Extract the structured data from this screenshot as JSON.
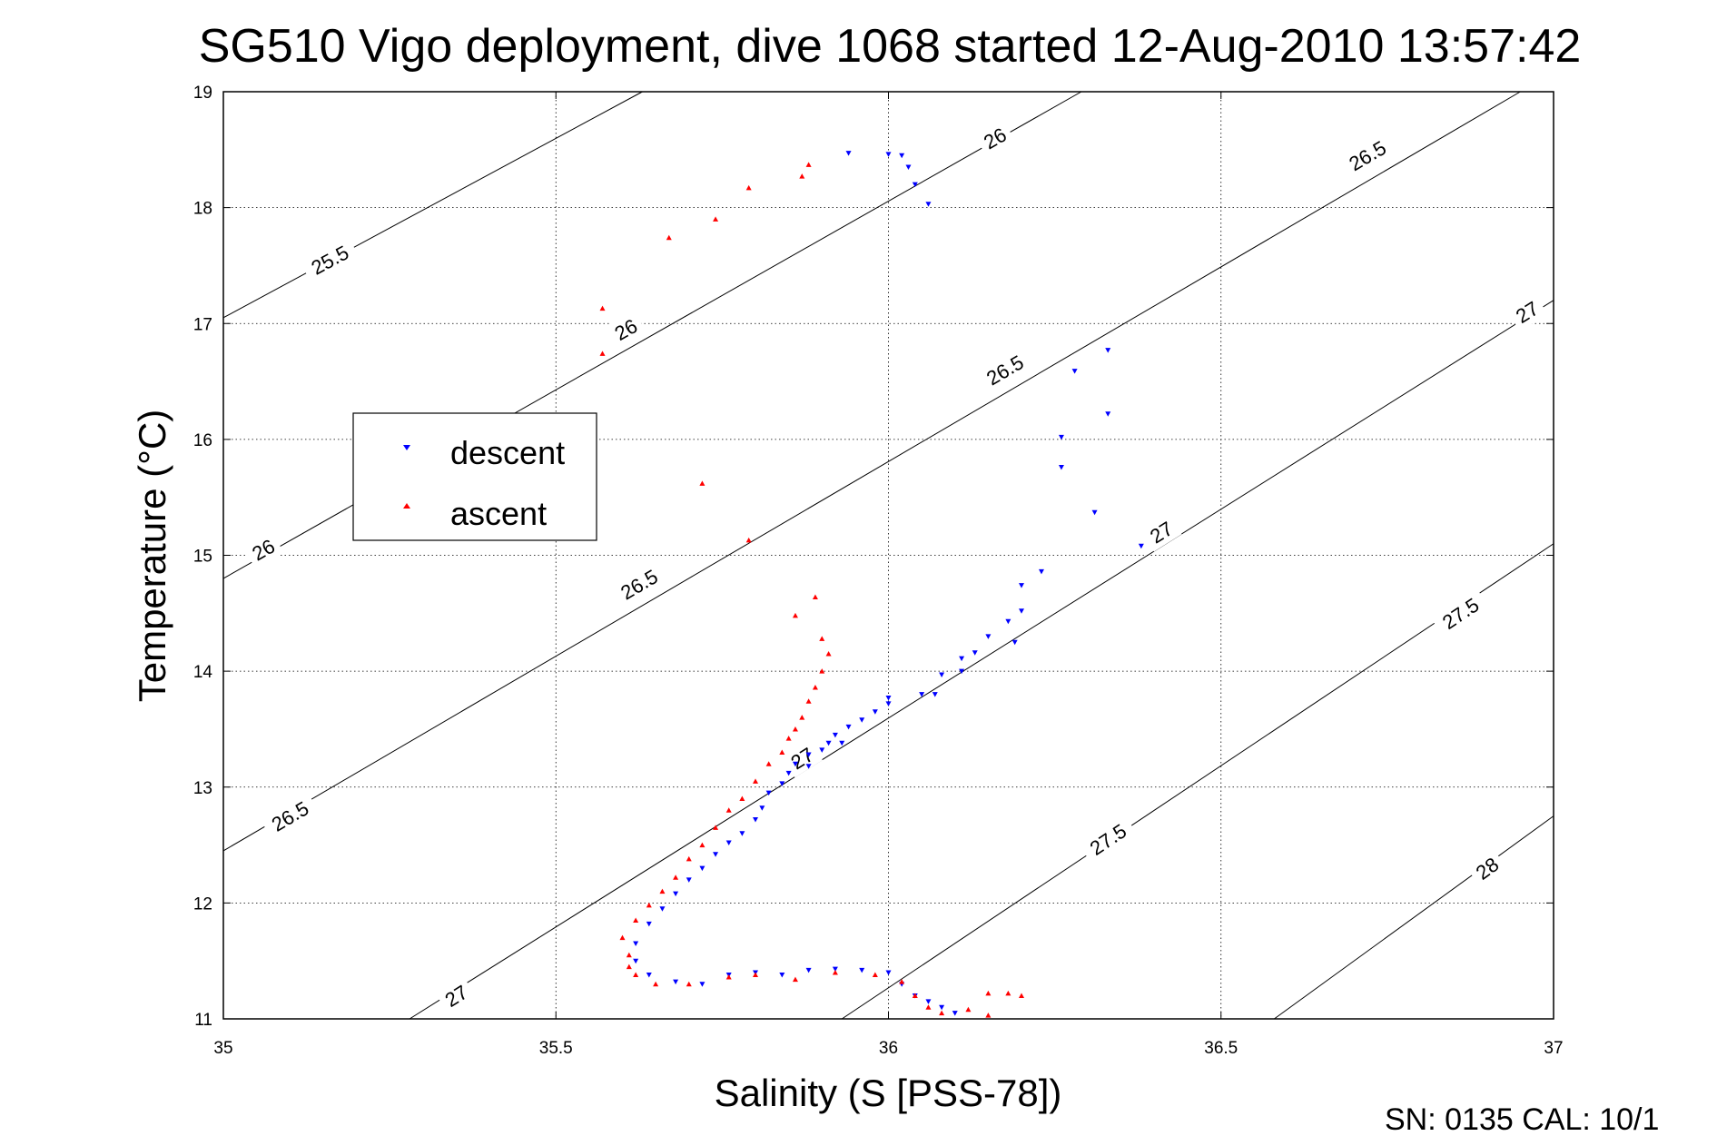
{
  "chart_data": {
    "type": "scatter",
    "title": "SG510 Vigo deployment, dive 1068 started 12-Aug-2010 13:57:42",
    "xlabel": "Salinity (S [PSS-78])",
    "ylabel": "Temperature (°C)",
    "xlim": [
      35,
      37
    ],
    "ylim": [
      11,
      19
    ],
    "x_ticks": [
      "35",
      "35.5",
      "36",
      "36.5",
      "37"
    ],
    "y_ticks": [
      "11",
      "12",
      "13",
      "14",
      "15",
      "16",
      "17",
      "18",
      "19"
    ],
    "grid": "dotted",
    "legend_position": "left",
    "legend": [
      {
        "label": "descent",
        "color": "#0000ff",
        "marker": "down-triangle"
      },
      {
        "label": "ascent",
        "color": "#ff0000",
        "marker": "up-triangle"
      }
    ],
    "footer": "SN: 0135  CAL: 10/1",
    "contours": [
      {
        "value": 25.5,
        "label": "25.5",
        "points": [
          [
            35.0,
            17.05
          ],
          [
            35.63,
            19.0
          ]
        ],
        "labels_at": [
          [
            35.16,
            17.55
          ]
        ]
      },
      {
        "value": 26.0,
        "label": "26",
        "points": [
          [
            35.0,
            14.8
          ],
          [
            36.29,
            19.0
          ]
        ],
        "labels_at": [
          [
            35.06,
            15.05
          ],
          [
            35.605,
            16.95
          ],
          [
            36.16,
            18.6
          ]
        ]
      },
      {
        "value": 26.5,
        "label": "26.5",
        "points": [
          [
            35.0,
            12.45
          ],
          [
            36.95,
            19.0
          ]
        ],
        "labels_at": [
          [
            35.1,
            12.75
          ],
          [
            35.625,
            14.75
          ],
          [
            36.175,
            16.6
          ],
          [
            36.72,
            18.45
          ]
        ]
      },
      {
        "value": 27.0,
        "label": "27",
        "points": [
          [
            35.28,
            11.0
          ],
          [
            37.0,
            17.2
          ]
        ],
        "labels_at": [
          [
            35.35,
            11.2
          ],
          [
            35.87,
            13.25
          ],
          [
            36.41,
            15.2
          ],
          [
            36.96,
            17.1
          ]
        ]
      },
      {
        "value": 27.5,
        "label": "27.5",
        "points": [
          [
            35.93,
            11.0
          ],
          [
            37.0,
            15.1
          ]
        ],
        "labels_at": [
          [
            36.33,
            12.55
          ],
          [
            36.86,
            14.5
          ]
        ]
      },
      {
        "value": 28.0,
        "label": "28",
        "points": [
          [
            36.58,
            11.0
          ],
          [
            37.0,
            12.75
          ]
        ],
        "labels_at": [
          [
            36.9,
            12.3
          ]
        ]
      }
    ],
    "series": [
      {
        "name": "descent",
        "color": "#0000ff",
        "points": [
          [
            35.94,
            18.47
          ],
          [
            36.0,
            18.46
          ],
          [
            36.02,
            18.45
          ],
          [
            36.03,
            18.35
          ],
          [
            36.04,
            18.2
          ],
          [
            36.06,
            18.03
          ],
          [
            36.33,
            16.77
          ],
          [
            36.28,
            16.59
          ],
          [
            36.33,
            16.22
          ],
          [
            36.26,
            16.02
          ],
          [
            36.26,
            15.76
          ],
          [
            36.31,
            15.37
          ],
          [
            36.38,
            15.08
          ],
          [
            36.23,
            14.86
          ],
          [
            36.2,
            14.74
          ],
          [
            36.2,
            14.52
          ],
          [
            36.18,
            14.43
          ],
          [
            36.15,
            14.3
          ],
          [
            36.19,
            14.25
          ],
          [
            36.13,
            14.16
          ],
          [
            36.11,
            14.11
          ],
          [
            36.11,
            14.0
          ],
          [
            36.08,
            13.97
          ],
          [
            36.05,
            13.8
          ],
          [
            36.07,
            13.8
          ],
          [
            36.0,
            13.77
          ],
          [
            36.0,
            13.72
          ],
          [
            35.98,
            13.65
          ],
          [
            35.96,
            13.58
          ],
          [
            35.94,
            13.52
          ],
          [
            35.92,
            13.45
          ],
          [
            35.93,
            13.38
          ],
          [
            35.91,
            13.38
          ],
          [
            35.9,
            13.32
          ],
          [
            35.88,
            13.28
          ],
          [
            35.88,
            13.18
          ],
          [
            35.86,
            13.2
          ],
          [
            35.85,
            13.12
          ],
          [
            35.84,
            13.03
          ],
          [
            35.82,
            12.95
          ],
          [
            35.81,
            12.82
          ],
          [
            35.8,
            12.72
          ],
          [
            35.78,
            12.6
          ],
          [
            35.76,
            12.52
          ],
          [
            35.74,
            12.42
          ],
          [
            35.72,
            12.3
          ],
          [
            35.7,
            12.2
          ],
          [
            35.68,
            12.08
          ],
          [
            35.66,
            11.95
          ],
          [
            35.64,
            11.82
          ],
          [
            35.62,
            11.65
          ],
          [
            35.62,
            11.5
          ],
          [
            35.64,
            11.38
          ],
          [
            35.68,
            11.32
          ],
          [
            35.72,
            11.3
          ],
          [
            35.76,
            11.38
          ],
          [
            35.8,
            11.4
          ],
          [
            35.84,
            11.38
          ],
          [
            35.88,
            11.42
          ],
          [
            35.92,
            11.43
          ],
          [
            35.96,
            11.42
          ],
          [
            36.0,
            11.4
          ],
          [
            36.02,
            11.3
          ],
          [
            36.04,
            11.2
          ],
          [
            36.06,
            11.15
          ],
          [
            36.08,
            11.1
          ],
          [
            36.1,
            11.05
          ]
        ]
      },
      {
        "name": "ascent",
        "color": "#ff0000",
        "points": [
          [
            35.88,
            18.37
          ],
          [
            35.87,
            18.27
          ],
          [
            35.79,
            18.17
          ],
          [
            35.74,
            17.9
          ],
          [
            35.67,
            17.74
          ],
          [
            35.57,
            17.13
          ],
          [
            35.57,
            16.74
          ],
          [
            35.72,
            15.62
          ],
          [
            35.79,
            15.13
          ],
          [
            35.89,
            14.64
          ],
          [
            35.86,
            14.48
          ],
          [
            35.9,
            14.28
          ],
          [
            35.91,
            14.15
          ],
          [
            35.9,
            14.0
          ],
          [
            35.89,
            13.86
          ],
          [
            35.88,
            13.74
          ],
          [
            35.87,
            13.6
          ],
          [
            35.86,
            13.5
          ],
          [
            35.85,
            13.42
          ],
          [
            35.84,
            13.3
          ],
          [
            35.82,
            13.2
          ],
          [
            35.8,
            13.05
          ],
          [
            35.78,
            12.9
          ],
          [
            35.76,
            12.8
          ],
          [
            35.74,
            12.65
          ],
          [
            35.72,
            12.5
          ],
          [
            35.7,
            12.38
          ],
          [
            35.68,
            12.22
          ],
          [
            35.66,
            12.1
          ],
          [
            35.64,
            11.98
          ],
          [
            35.62,
            11.85
          ],
          [
            35.6,
            11.7
          ],
          [
            35.61,
            11.55
          ],
          [
            35.61,
            11.45
          ],
          [
            35.62,
            11.38
          ],
          [
            35.65,
            11.3
          ],
          [
            35.7,
            11.3
          ],
          [
            35.76,
            11.36
          ],
          [
            35.8,
            11.38
          ],
          [
            35.86,
            11.34
          ],
          [
            35.92,
            11.4
          ],
          [
            35.98,
            11.38
          ],
          [
            36.02,
            11.32
          ],
          [
            36.04,
            11.2
          ],
          [
            36.06,
            11.1
          ],
          [
            36.08,
            11.05
          ],
          [
            36.12,
            11.08
          ],
          [
            36.15,
            11.22
          ],
          [
            36.18,
            11.22
          ],
          [
            36.2,
            11.2
          ],
          [
            36.15,
            11.03
          ]
        ]
      }
    ]
  }
}
